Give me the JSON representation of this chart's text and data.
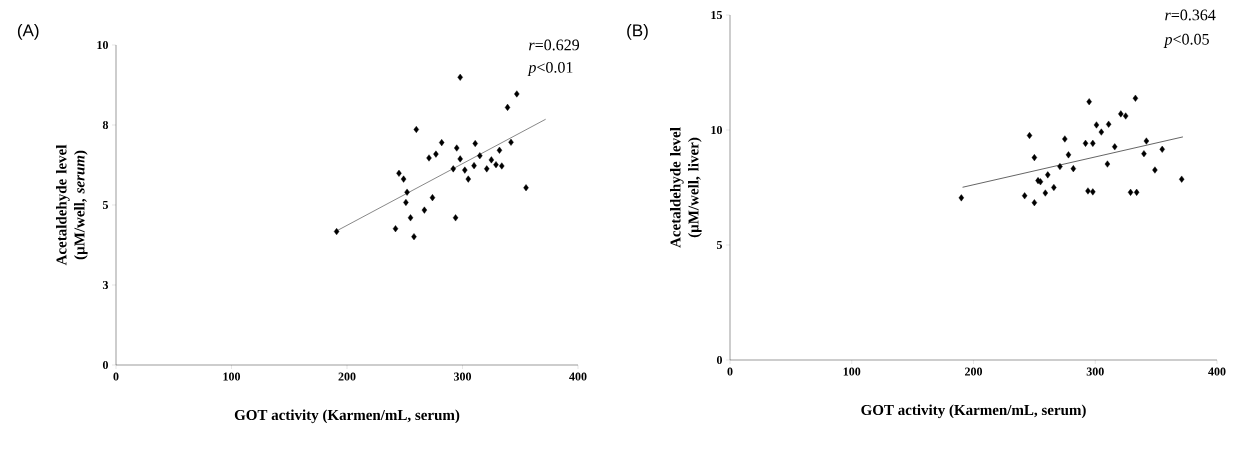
{
  "chart_data": [
    {
      "type": "scatter",
      "xlabel": "GOT activity (Karmen/mL, serum)",
      "ylabel": "Acetaldehyde level (µM/well, *serum*)",
      "annotations": [
        "(A)",
        "*r*=0.629",
        "*p*<0.01"
      ],
      "xlim": [
        0,
        400
      ],
      "ylim": [
        0,
        10
      ],
      "xticks": [
        0,
        100,
        200,
        300,
        400
      ],
      "yticks": [
        0,
        {
          "value": 2.5,
          "label": "3"
        },
        5,
        {
          "value": 7.5,
          "label": "8"
        },
        10
      ],
      "marker": "diamond",
      "series": [
        {
          "type": "scatter",
          "color": "#000000",
          "x": [
            191,
            242,
            245,
            249,
            251,
            252,
            255,
            258,
            260,
            267,
            271,
            274,
            277,
            282,
            292,
            294,
            295,
            298,
            298,
            302,
            305,
            310,
            311,
            315,
            321,
            325,
            329,
            332,
            334,
            339,
            342,
            347,
            355
          ],
          "values": [
            4.17,
            4.26,
            5.99,
            5.81,
            5.08,
            5.4,
            4.6,
            4.01,
            7.36,
            4.84,
            6.47,
            5.23,
            6.59,
            6.95,
            6.13,
            4.6,
            6.78,
            8.99,
            6.44,
            6.09,
            5.81,
            6.23,
            6.92,
            6.54,
            6.13,
            6.41,
            6.26,
            6.71,
            6.22,
            8.05,
            6.96,
            8.47,
            5.54
          ]
        },
        {
          "type": "line",
          "color": "#555555",
          "marker": "none",
          "x": [
            191,
            372
          ],
          "values": [
            4.19,
            7.68
          ]
        }
      ]
    },
    {
      "type": "scatter",
      "xlabel": "GOT activity (Karmen/mL, serum)",
      "ylabel": "Acetaldehyde level (µM/well, liver)",
      "annotations": [
        "(B)",
        "*r*=0.364",
        "*p*<0.05"
      ],
      "xlim": [
        0,
        400
      ],
      "ylim": [
        0,
        15
      ],
      "xticks": [
        0,
        100,
        200,
        300,
        400
      ],
      "yticks": [
        0,
        5,
        10,
        15
      ],
      "marker": "diamond",
      "series": [
        {
          "type": "scatter",
          "color": "#000000",
          "x": [
            190,
            242,
            246,
            250,
            250,
            253,
            255,
            259,
            261,
            266,
            271,
            275,
            278,
            282,
            292,
            294,
            295,
            298,
            298,
            301,
            305,
            310,
            311,
            316,
            321,
            325,
            329,
            333,
            334,
            340,
            342,
            349,
            355,
            371
          ],
          "values": [
            7.05,
            7.14,
            9.76,
            8.8,
            6.84,
            7.8,
            7.75,
            7.26,
            8.05,
            7.5,
            8.41,
            9.61,
            8.92,
            8.32,
            9.42,
            7.35,
            11.23,
            7.31,
            9.42,
            10.22,
            9.91,
            8.52,
            10.25,
            9.27,
            10.7,
            10.61,
            7.29,
            11.38,
            7.29,
            8.97,
            9.52,
            8.26,
            9.16,
            7.86
          ]
        },
        {
          "type": "line",
          "color": "#222222",
          "marker": "none",
          "x": [
            191,
            372
          ],
          "values": [
            7.51,
            9.7
          ]
        }
      ]
    }
  ]
}
